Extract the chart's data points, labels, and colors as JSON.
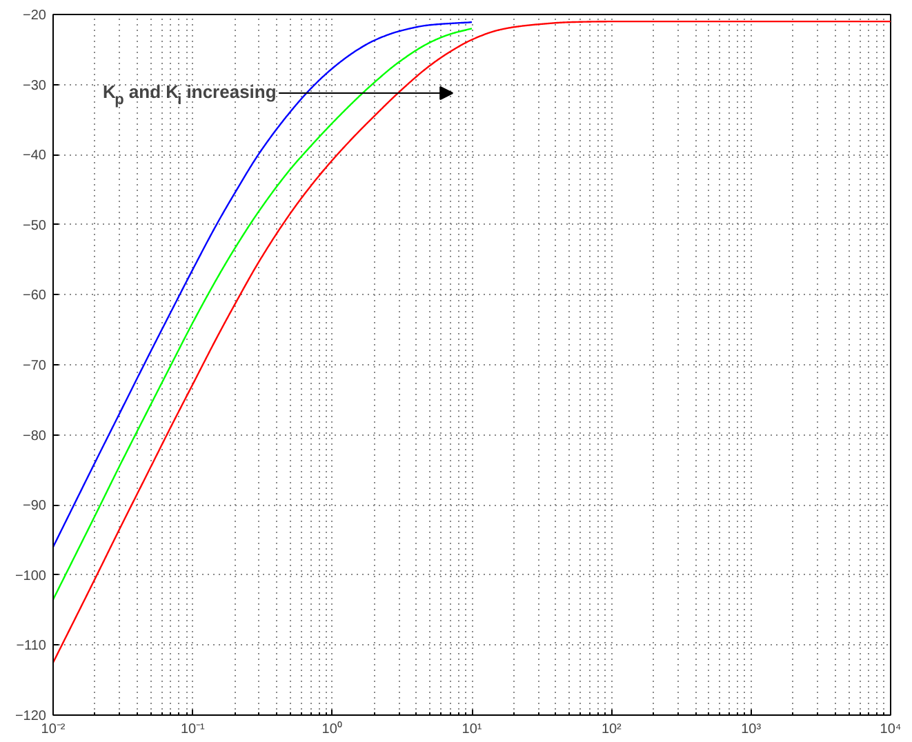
{
  "chart_data": {
    "type": "line",
    "log": "x",
    "grid": true,
    "marker": "none",
    "line_style": "solid",
    "xlim": [
      0.01,
      10000
    ],
    "ylim": [
      -120,
      -20
    ],
    "xticks": [
      {
        "value": 0.01,
        "label": "10⁻²"
      },
      {
        "value": 0.1,
        "label": "10⁻¹"
      },
      {
        "value": 1,
        "label": "10⁰"
      },
      {
        "value": 10,
        "label": "10¹"
      },
      {
        "value": 100,
        "label": "10²"
      },
      {
        "value": 1000,
        "label": "10³"
      },
      {
        "value": 10000,
        "label": "10⁴"
      }
    ],
    "yticks": [
      -120,
      -110,
      -100,
      -90,
      -80,
      -70,
      -60,
      -50,
      -40,
      -30,
      -20
    ],
    "annotations": [
      "K$_{p}$ and K$_{i}$ increasing"
    ],
    "series": [
      {
        "color": "#0000ff",
        "x": [
          0.01,
          0.02,
          0.03,
          0.05,
          0.07,
          0.1,
          0.15,
          0.2,
          0.3,
          0.5,
          0.7,
          1,
          1.5,
          2,
          3,
          5,
          10
        ],
        "values": [
          -96,
          -83.9,
          -76.9,
          -68.1,
          -62.4,
          -56.4,
          -49.8,
          -45.5,
          -39.8,
          -33.9,
          -30.6,
          -27.7,
          -25.1,
          -23.7,
          -22.4,
          -21.5,
          -21.1
        ]
      },
      {
        "color": "#00ff00",
        "x": [
          0.01,
          0.02,
          0.03,
          0.05,
          0.07,
          0.1,
          0.15,
          0.2,
          0.3,
          0.5,
          0.7,
          1,
          1.5,
          2,
          3,
          5,
          7,
          10
        ],
        "values": [
          -103.5,
          -91.5,
          -84.4,
          -75.7,
          -70,
          -64,
          -57.6,
          -53.4,
          -48,
          -42.1,
          -38.8,
          -35.5,
          -32,
          -29.7,
          -26.8,
          -24,
          -22.8,
          -22
        ]
      },
      {
        "color": "#ff0000",
        "x": [
          0.01,
          0.02,
          0.03,
          0.05,
          0.07,
          0.1,
          0.15,
          0.2,
          0.3,
          0.5,
          0.7,
          1,
          1.5,
          2,
          3,
          5,
          7,
          10,
          15,
          20,
          30,
          50,
          100,
          10000
        ],
        "values": [
          -112.5,
          -100.5,
          -93.4,
          -84.6,
          -78.8,
          -72.8,
          -66,
          -61.4,
          -55.2,
          -48.4,
          -44.5,
          -40.8,
          -37,
          -34.5,
          -31.1,
          -27.3,
          -25.3,
          -23.6,
          -22.3,
          -21.8,
          -21.4,
          -21.1,
          -21,
          -21
        ]
      }
    ]
  }
}
